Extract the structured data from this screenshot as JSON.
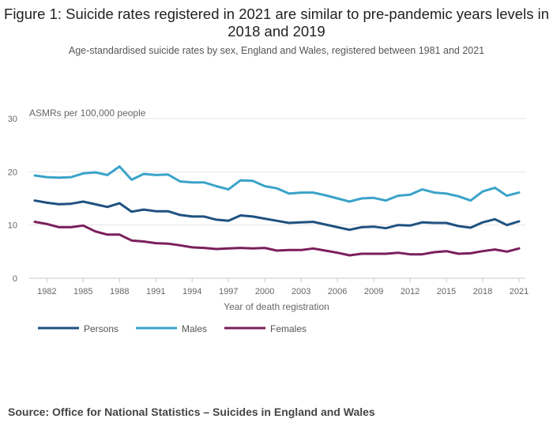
{
  "page": {
    "title": "Figure 1: Suicide rates registered in 2021 are similar to pre-pandemic years levels in 2018 and 2019",
    "subtitle": "Age-standardised suicide rates by sex, England and Wales, registered between 1981 and 2021",
    "source": "Source: Office for National Statistics – Suicides in England and Wales"
  },
  "chart_data": {
    "type": "line",
    "ylabel": "ASMRs per 100,000 people",
    "xlabel": "Year of death registration",
    "ylim": [
      0,
      30
    ],
    "yticks": [
      0,
      10,
      20,
      30
    ],
    "xticks": [
      1982,
      1985,
      1988,
      1991,
      1994,
      1997,
      2000,
      2003,
      2006,
      2009,
      2012,
      2015,
      2018,
      2021
    ],
    "x": [
      1981,
      1982,
      1983,
      1984,
      1985,
      1986,
      1987,
      1988,
      1989,
      1990,
      1991,
      1992,
      1993,
      1994,
      1995,
      1996,
      1997,
      1998,
      1999,
      2000,
      2001,
      2002,
      2003,
      2004,
      2005,
      2006,
      2007,
      2008,
      2009,
      2010,
      2011,
      2012,
      2013,
      2014,
      2015,
      2016,
      2017,
      2018,
      2019,
      2020,
      2021
    ],
    "grid": true,
    "legend_position": "bottom-left",
    "series": [
      {
        "name": "Persons",
        "color": "#1f5180",
        "values": [
          14.6,
          14.2,
          13.9,
          14.0,
          14.4,
          13.9,
          13.4,
          14.1,
          12.5,
          12.9,
          12.6,
          12.6,
          11.9,
          11.6,
          11.6,
          11.0,
          10.8,
          11.8,
          11.6,
          11.2,
          10.8,
          10.4,
          10.5,
          10.6,
          10.1,
          9.6,
          9.1,
          9.6,
          9.7,
          9.4,
          10.0,
          9.9,
          10.5,
          10.4,
          10.4,
          9.8,
          9.5,
          10.5,
          11.1,
          10.0,
          10.7
        ]
      },
      {
        "name": "Males",
        "color": "#3ba3c9",
        "values": [
          19.3,
          19.0,
          18.9,
          19.0,
          19.7,
          19.9,
          19.4,
          21.0,
          18.5,
          19.6,
          19.4,
          19.5,
          18.2,
          18.0,
          18.0,
          17.3,
          16.7,
          18.4,
          18.3,
          17.3,
          16.9,
          15.9,
          16.1,
          16.1,
          15.6,
          15.0,
          14.4,
          15.0,
          15.1,
          14.6,
          15.5,
          15.7,
          16.7,
          16.1,
          15.9,
          15.4,
          14.6,
          16.3,
          17.0,
          15.5,
          16.1
        ]
      },
      {
        "name": "Females",
        "color": "#7a1f5c",
        "values": [
          10.6,
          10.2,
          9.6,
          9.6,
          9.9,
          8.8,
          8.2,
          8.2,
          7.1,
          6.9,
          6.6,
          6.5,
          6.2,
          5.8,
          5.7,
          5.5,
          5.6,
          5.7,
          5.6,
          5.7,
          5.2,
          5.3,
          5.3,
          5.6,
          5.2,
          4.8,
          4.3,
          4.6,
          4.6,
          4.6,
          4.8,
          4.5,
          4.5,
          4.9,
          5.1,
          4.6,
          4.7,
          5.1,
          5.4,
          5.0,
          5.6
        ]
      }
    ]
  }
}
